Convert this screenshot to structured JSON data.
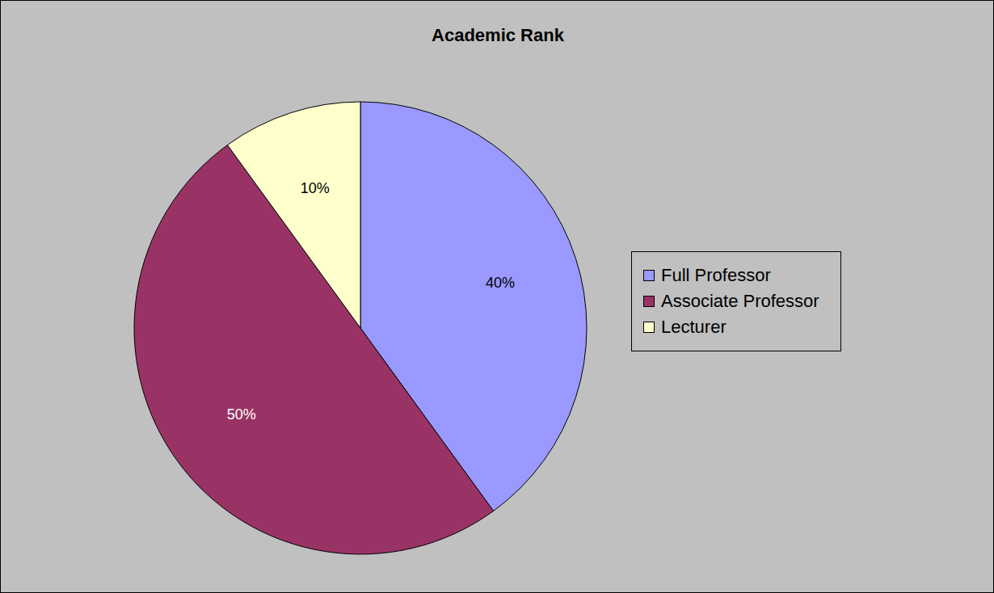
{
  "chart_data": {
    "type": "pie",
    "title": "Academic Rank",
    "categories": [
      "Full Professor",
      "Associate Professor",
      "Lecturer"
    ],
    "values": [
      40,
      50,
      10
    ],
    "value_labels": [
      "40%",
      "50%",
      "10%"
    ],
    "colors": [
      "#9999FF",
      "#993366",
      "#FFFFCC"
    ],
    "data_labels": true,
    "legend": "right"
  }
}
